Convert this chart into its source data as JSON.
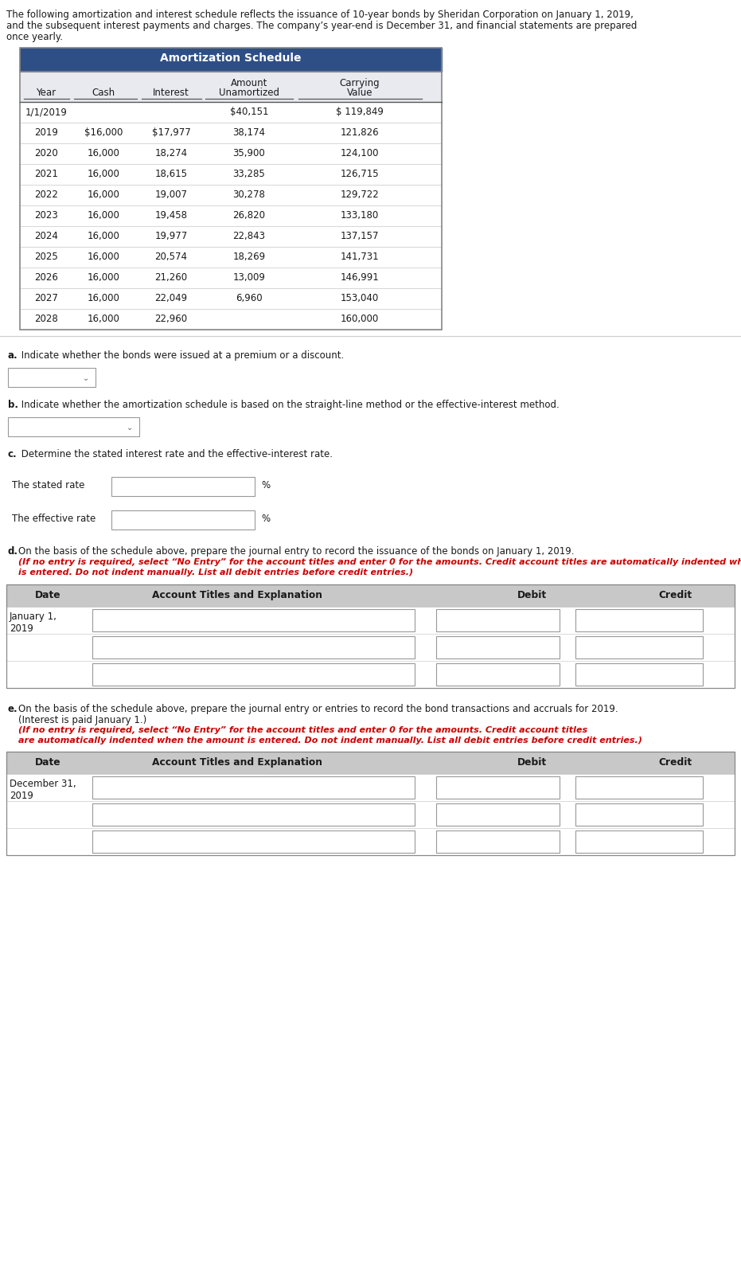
{
  "intro_text_line1": "The following amortization and interest schedule reflects the issuance of 10-year bonds by Sheridan Corporation on January 1, 2019,",
  "intro_text_line2": "and the subsequent interest payments and charges. The company’s year-end is December 31, and financial statements are prepared",
  "intro_text_line3": "once yearly.",
  "table_title": "Amortization Schedule",
  "col_headers_line1": [
    "",
    "",
    "",
    "Amount",
    "Carrying"
  ],
  "col_headers_line2": [
    "Year",
    "Cash",
    "Interest",
    "Unamortized",
    "Value"
  ],
  "table_data": [
    [
      "1/1/2019",
      "",
      "",
      "$40,151",
      "$ 119,849"
    ],
    [
      "2019",
      "$16,000",
      "$17,977",
      "38,174",
      "121,826"
    ],
    [
      "2020",
      "16,000",
      "18,274",
      "35,900",
      "124,100"
    ],
    [
      "2021",
      "16,000",
      "18,615",
      "33,285",
      "126,715"
    ],
    [
      "2022",
      "16,000",
      "19,007",
      "30,278",
      "129,722"
    ],
    [
      "2023",
      "16,000",
      "19,458",
      "26,820",
      "133,180"
    ],
    [
      "2024",
      "16,000",
      "19,977",
      "22,843",
      "137,157"
    ],
    [
      "2025",
      "16,000",
      "20,574",
      "18,269",
      "141,731"
    ],
    [
      "2026",
      "16,000",
      "21,260",
      "13,009",
      "146,991"
    ],
    [
      "2027",
      "16,000",
      "22,049",
      "6,960",
      "153,040"
    ],
    [
      "2028",
      "16,000",
      "22,960",
      "",
      "160,000"
    ]
  ],
  "table_header_bg": "#2e4f85",
  "table_subheader_bg": "#e8eaf0",
  "table_border_color": "#aaaaaa",
  "section_a_bold": "a.",
  "section_a_text": " Indicate whether the bonds were issued at a premium or a discount.",
  "section_b_bold": "b.",
  "section_b_text": " Indicate whether the amortization schedule is based on the straight-line method or the effective-interest method.",
  "section_c_bold": "c.",
  "section_c_text": " Determine the stated interest rate and the effective-interest rate.",
  "stated_rate_label": "The stated rate",
  "effective_rate_label": "The effective rate",
  "percent_sign": "%",
  "section_d_bold": "d.",
  "section_d_normal": " On the basis of the schedule above, prepare the journal entry to record the issuance of the bonds on January 1, 2019. ",
  "section_d_italic": "(If no entry is required, select “No Entry” for the account titles and enter 0 for the amounts. Credit account titles are automatically indented when the amount is entered. Do not indent manually. List all debit entries before credit entries.)",
  "section_e_bold": "e.",
  "section_e_normal": " On the basis of the schedule above, prepare the journal entry or entries to record the bond transactions and accruals for 2019. (Interest is paid January 1.) ",
  "section_e_italic": "(If no entry is required, select “No Entry” for the account titles and enter 0 for the amounts. Credit account titles are automatically indented when the amount is entered. Do not indent manually. List all debit entries before credit entries.)",
  "journal_col_headers": [
    "Date",
    "Account Titles and Explanation",
    "Debit",
    "Credit"
  ],
  "journal_d_date": "January 1,\n2019",
  "journal_e_date": "December 31,\n2019",
  "journal_header_bg": "#c8c8c8",
  "bg_color": "#ffffff",
  "text_color": "#1a1a1a",
  "red_color": "#cc0000",
  "separator_color": "#888888"
}
